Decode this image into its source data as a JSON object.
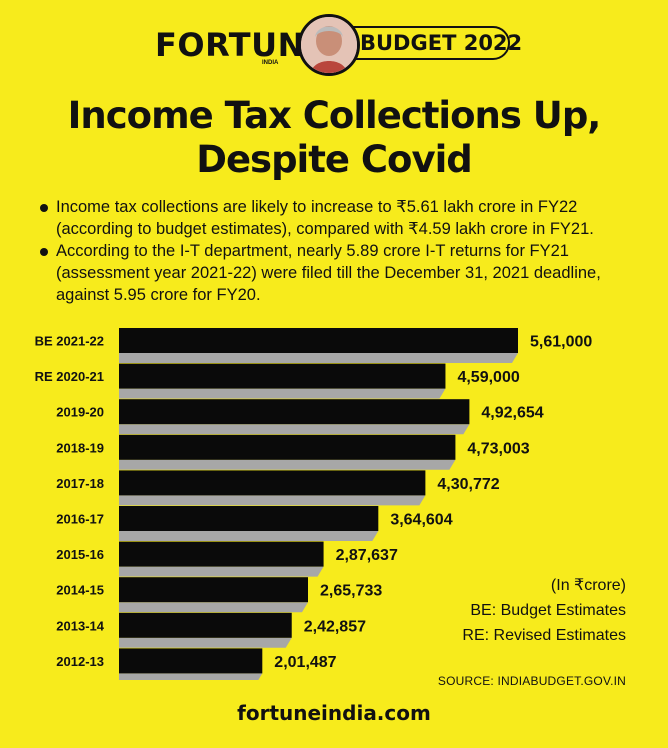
{
  "header": {
    "brand": "FORTUNE",
    "brand_sub": "INDIA",
    "badge": "BUDGET 2022"
  },
  "title_line1": "Income Tax Collections Up,",
  "title_line2": "Despite Covid",
  "bullets": [
    "Income tax collections are likely to increase to ₹5.61 lakh crore in FY22 (according to budget estimates), compared with ₹4.59 lakh crore in FY21.",
    "According to the I-T department, nearly 5.89 crore I-T returns for FY21 (assessment year 2021-22) were filed till the December 31, 2021 deadline, against 5.95 crore for FY20."
  ],
  "notes": {
    "unit": "(In ₹crore)",
    "be": "BE: Budget Estimates",
    "re": "RE: Revised Estimates"
  },
  "source": "SOURCE: INDIABUDGET.GOV.IN",
  "footer": "fortuneindia.com",
  "colors": {
    "background": "#f7eb1c",
    "bar": "#0a0a0a",
    "shadow": "#a7a7a7",
    "text": "#111111"
  },
  "chart_data": {
    "type": "bar",
    "orientation": "horizontal",
    "categories": [
      "BE 2021-22",
      "RE 2020-21",
      "2019-20",
      "2018-19",
      "2017-18",
      "2016-17",
      "2015-16",
      "2014-15",
      "2013-14",
      "2012-13"
    ],
    "values": [
      561000,
      459000,
      492654,
      473003,
      430772,
      364604,
      287637,
      265733,
      242857,
      201487
    ],
    "labels": [
      "5,61,000",
      "4,59,000",
      "4,92,654",
      "4,73,003",
      "4,30,772",
      "3,64,604",
      "2,87,637",
      "2,65,733",
      "2,42,857",
      "2,01,487"
    ],
    "xlim": [
      0,
      561000
    ],
    "grid": false
  }
}
